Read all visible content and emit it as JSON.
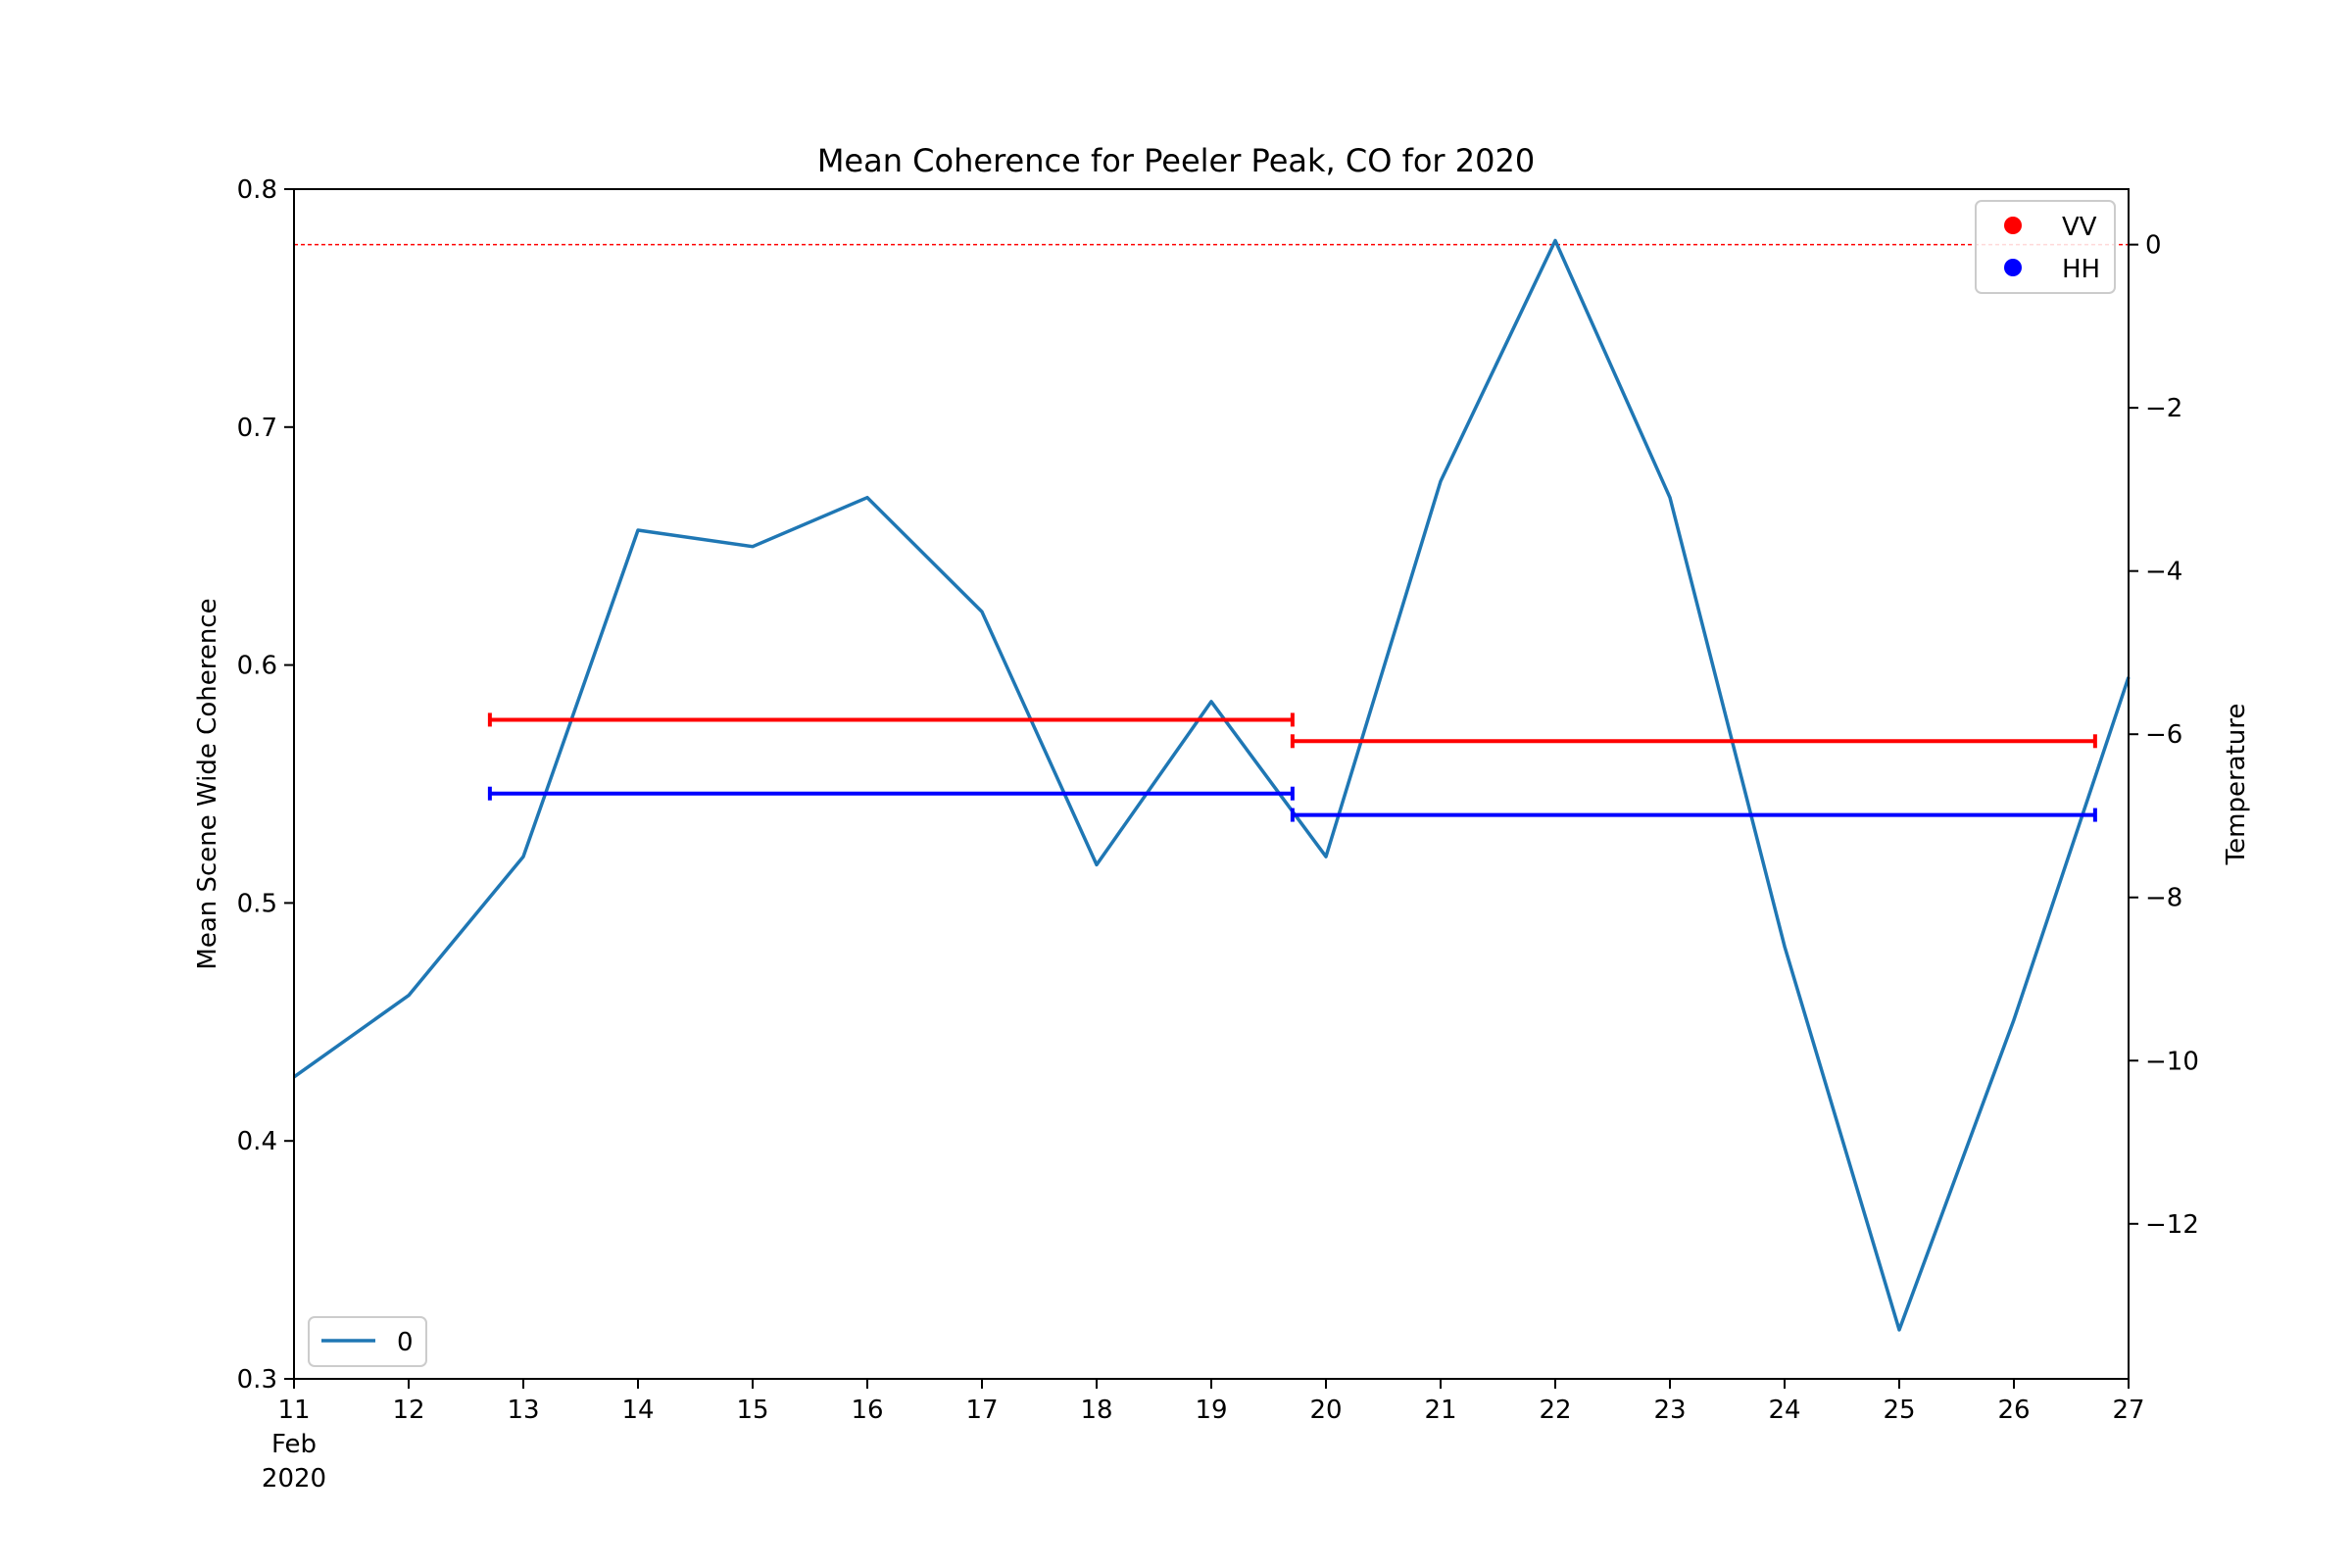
{
  "chart_data": {
    "type": "line",
    "title": "Mean Coherence for Peeler Peak, CO for 2020",
    "ylabel": "Mean Scene Wide Coherence",
    "ylabel_right": "Temperature",
    "ylabel_right_color": "#0000ff",
    "xlim": [
      "2020-02-11",
      "2020-02-27"
    ],
    "ylim": [
      0.3,
      0.8
    ],
    "ylim_right": [
      -13.9,
      0.68
    ],
    "x_ticks": [
      {
        "date": "2020-02-11",
        "lines": [
          "11",
          "Feb",
          "2020"
        ]
      },
      {
        "date": "2020-02-12",
        "lines": [
          "12"
        ]
      },
      {
        "date": "2020-02-13",
        "lines": [
          "13"
        ]
      },
      {
        "date": "2020-02-14",
        "lines": [
          "14"
        ]
      },
      {
        "date": "2020-02-15",
        "lines": [
          "15"
        ]
      },
      {
        "date": "2020-02-16",
        "lines": [
          "16"
        ]
      },
      {
        "date": "2020-02-17",
        "lines": [
          "17"
        ]
      },
      {
        "date": "2020-02-18",
        "lines": [
          "18"
        ]
      },
      {
        "date": "2020-02-19",
        "lines": [
          "19"
        ]
      },
      {
        "date": "2020-02-20",
        "lines": [
          "20"
        ]
      },
      {
        "date": "2020-02-21",
        "lines": [
          "21"
        ]
      },
      {
        "date": "2020-02-22",
        "lines": [
          "22"
        ]
      },
      {
        "date": "2020-02-23",
        "lines": [
          "23"
        ]
      },
      {
        "date": "2020-02-24",
        "lines": [
          "24"
        ]
      },
      {
        "date": "2020-02-25",
        "lines": [
          "25"
        ]
      },
      {
        "date": "2020-02-26",
        "lines": [
          "26"
        ]
      },
      {
        "date": "2020-02-27",
        "lines": [
          "27"
        ]
      }
    ],
    "y_ticks": [
      "0.3",
      "0.4",
      "0.5",
      "0.6",
      "0.7",
      "0.8"
    ],
    "y_ticks_right": [
      "−12",
      "−10",
      "−8",
      "−6",
      "−4",
      "−2",
      "0"
    ],
    "temperature_series": {
      "name": "0",
      "color": "#1f77b4",
      "x": [
        "2020-02-11",
        "2020-02-12",
        "2020-02-13",
        "2020-02-14",
        "2020-02-15",
        "2020-02-16",
        "2020-02-17",
        "2020-02-18",
        "2020-02-19",
        "2020-02-20",
        "2020-02-21",
        "2020-02-22",
        "2020-02-23",
        "2020-02-24",
        "2020-02-25",
        "2020-02-26",
        "2020-02-27"
      ],
      "y": [
        -10.2,
        -9.2,
        -7.5,
        -3.5,
        -3.7,
        -3.1,
        -4.5,
        -7.6,
        -5.6,
        -7.5,
        -2.9,
        0.05,
        -3.1,
        -8.6,
        -13.3,
        -9.5,
        -5.3
      ]
    },
    "coherence_intervals": [
      {
        "series": "VV",
        "color": "#ff0000",
        "start": "2020-02-12 17:00",
        "end": "2020-02-19 17:00",
        "value": 0.577
      },
      {
        "series": "VV",
        "color": "#ff0000",
        "start": "2020-02-19 17:00",
        "end": "2020-02-26 17:00",
        "value": 0.568
      },
      {
        "series": "HH",
        "color": "#0000ff",
        "start": "2020-02-12 17:00",
        "end": "2020-02-19 17:00",
        "value": 0.546
      },
      {
        "series": "HH",
        "color": "#0000ff",
        "start": "2020-02-19 17:00",
        "end": "2020-02-26 17:00",
        "value": 0.537
      }
    ],
    "reference_line": {
      "axis": "right",
      "value": 0,
      "color": "#ff0000",
      "style": "dashed"
    },
    "legend_upper_right": [
      {
        "label": "VV",
        "color": "#ff0000"
      },
      {
        "label": "HH",
        "color": "#0000ff"
      }
    ],
    "legend_lower_left": [
      {
        "label": "0",
        "color": "#1f77b4"
      }
    ]
  }
}
